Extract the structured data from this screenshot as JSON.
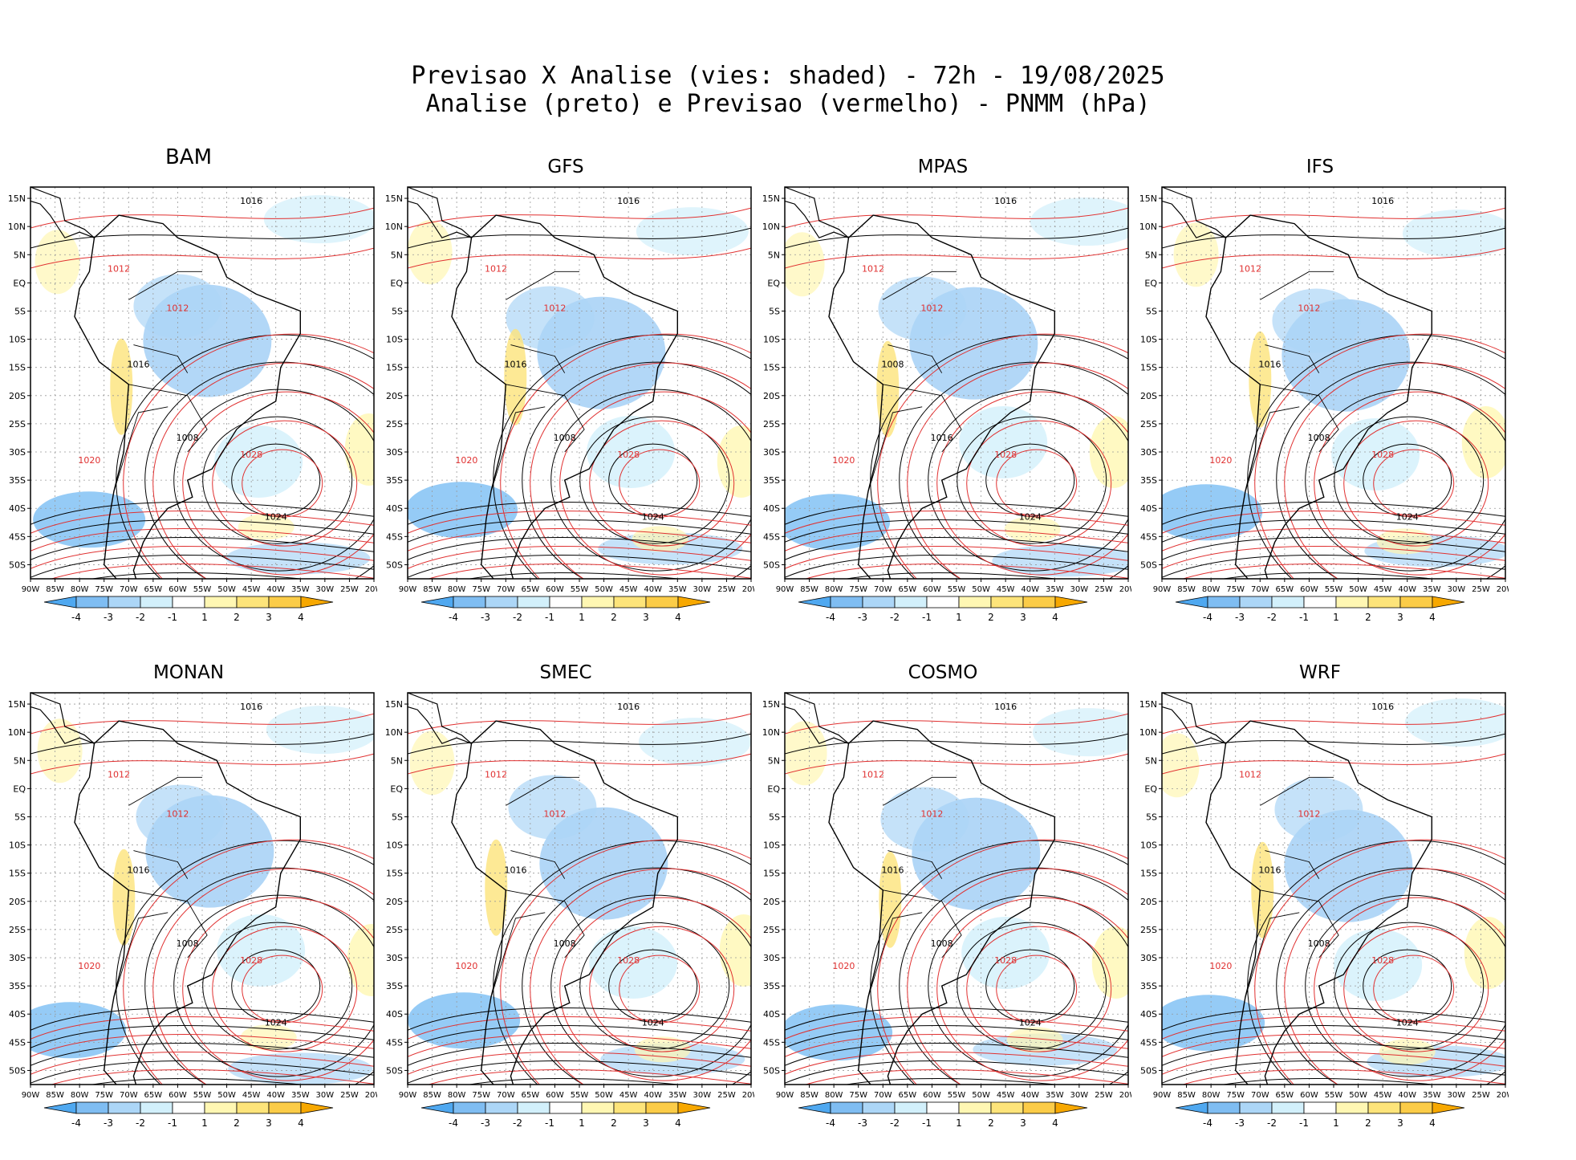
{
  "header": {
    "title_line1": "Previsao X Analise (vies: shaded) - 72h - 19/08/2025",
    "title_line2": "Analise (preto) e Previsao (vermelho) - PNMM (hPa)"
  },
  "axes": {
    "lat_labels": [
      "15N",
      "10N",
      "5N",
      "EQ",
      "5S",
      "10S",
      "15S",
      "20S",
      "25S",
      "30S",
      "35S",
      "40S",
      "45S",
      "50S"
    ],
    "lon_labels": [
      "90W",
      "85W",
      "80W",
      "75W",
      "70W",
      "65W",
      "60W",
      "55W",
      "50W",
      "45W",
      "40W",
      "35W",
      "30W",
      "25W",
      "20W"
    ]
  },
  "colorbar": {
    "ticks": [
      "-4",
      "-3",
      "-2",
      "-1",
      "1",
      "2",
      "3",
      "4"
    ],
    "colors": [
      "#4fa8f0",
      "#7fbdf2",
      "#acd6f7",
      "#d2f0fb",
      "#ffffff",
      "#fff7b3",
      "#fde47a",
      "#fbcc48",
      "#f7a800"
    ]
  },
  "contour_colors": {
    "analysis": "#000000",
    "forecast": "#e03030"
  },
  "panels": [
    {
      "model": "BAM",
      "labels": [
        "1016",
        "1012",
        "1016",
        "1020",
        "1024",
        "1028",
        "1008",
        "1012"
      ]
    },
    {
      "model": "GFS",
      "labels": [
        "1016",
        "1012",
        "1016",
        "1020",
        "1024",
        "1028",
        "1008",
        "1012"
      ]
    },
    {
      "model": "MPAS",
      "labels": [
        "1016",
        "1012",
        "1008",
        "1020",
        "1024",
        "1028",
        "1016",
        "1012"
      ]
    },
    {
      "model": "IFS",
      "labels": [
        "1016",
        "1012",
        "1016",
        "1020",
        "1024",
        "1028",
        "1008",
        "1012"
      ]
    },
    {
      "model": "MONAN",
      "labels": [
        "1016",
        "1012",
        "1016",
        "1020",
        "1024",
        "1028",
        "1008",
        "1012"
      ]
    },
    {
      "model": "SMEC",
      "labels": [
        "1016",
        "1012",
        "1016",
        "1020",
        "1024",
        "1028",
        "1008",
        "1012"
      ]
    },
    {
      "model": "COSMO",
      "labels": [
        "1016",
        "1012",
        "1016",
        "1020",
        "1024",
        "1028",
        "1008",
        "1012"
      ]
    },
    {
      "model": "WRF",
      "labels": [
        "1016",
        "1012",
        "1016",
        "1020",
        "1024",
        "1028",
        "1008",
        "1012"
      ]
    }
  ]
}
